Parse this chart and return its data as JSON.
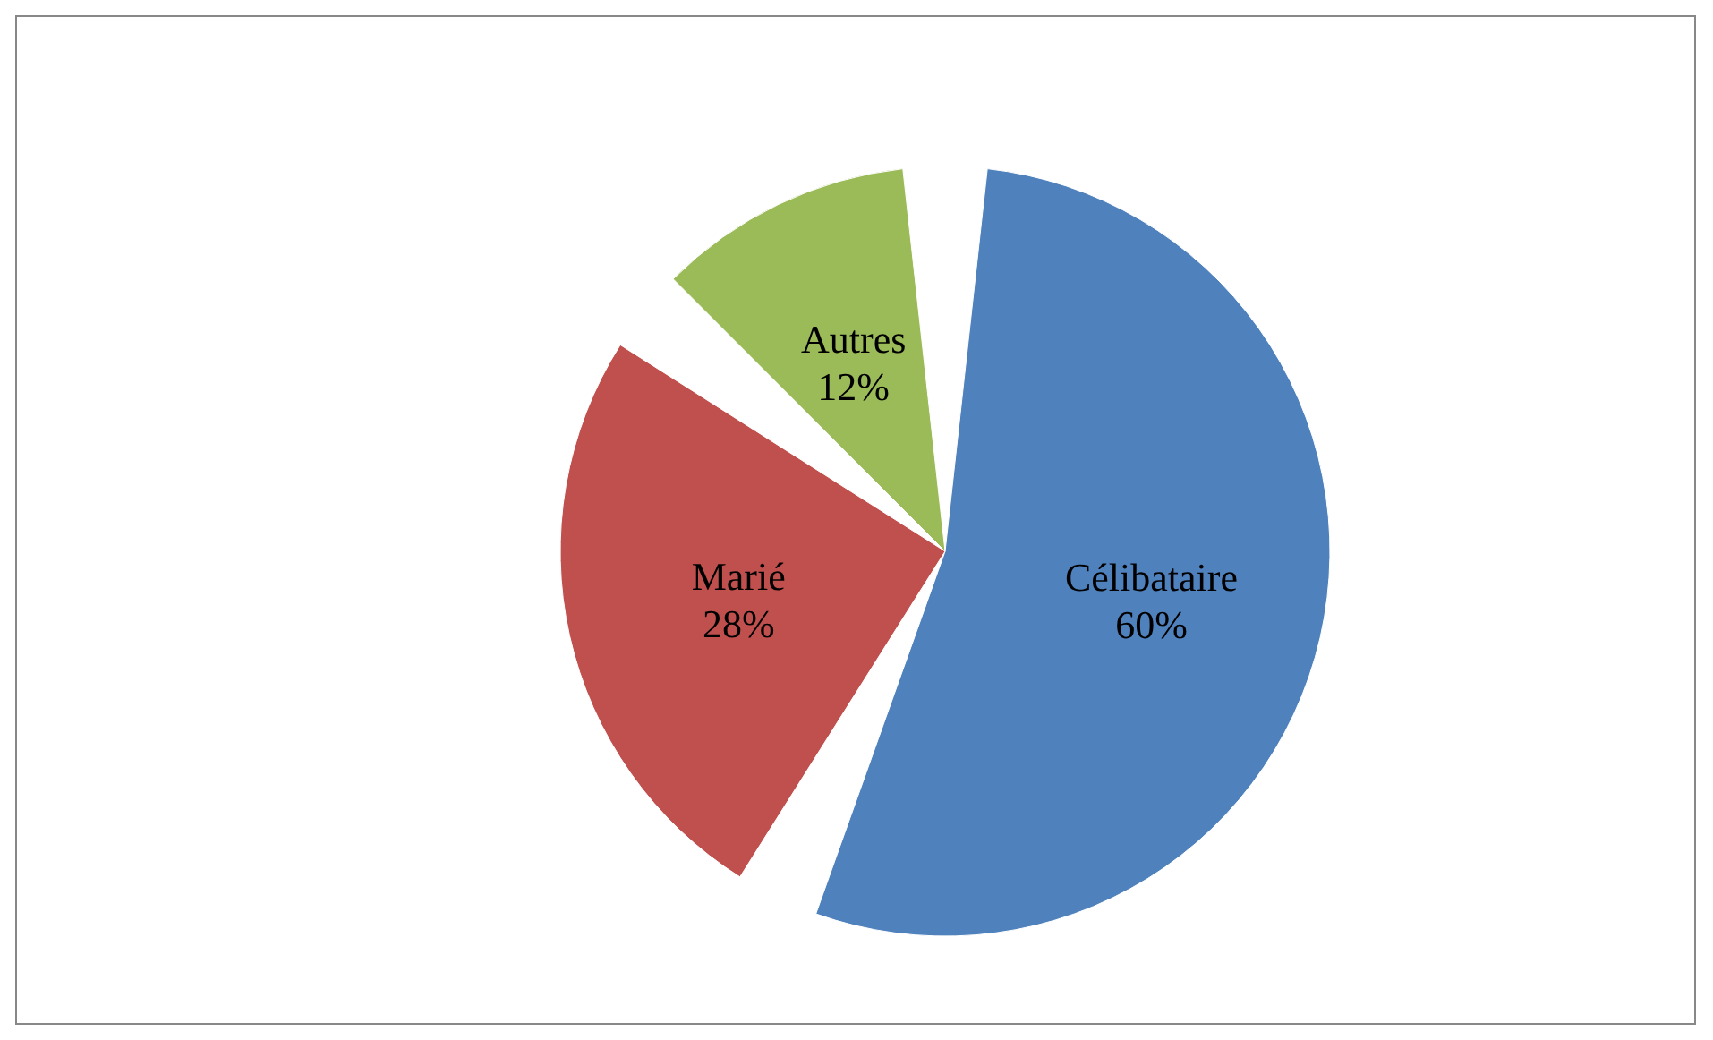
{
  "chart_data": {
    "type": "pie",
    "categories": [
      "Célibataire",
      "Marié",
      "Autres"
    ],
    "values": [
      60,
      28,
      12
    ],
    "colors": [
      "#4f81bd",
      "#c0504d",
      "#9bbb59"
    ],
    "value_labels": [
      "60%",
      "28%",
      "12%"
    ]
  }
}
